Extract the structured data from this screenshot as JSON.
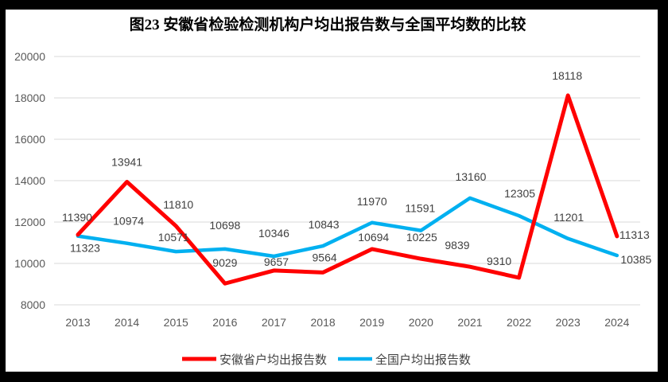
{
  "title": "图23 安徽省检验检测机构户均出报告数与全国平均数的比较",
  "chart_data": {
    "type": "line",
    "categories": [
      "2013",
      "2014",
      "2015",
      "2016",
      "2017",
      "2018",
      "2019",
      "2020",
      "2021",
      "2022",
      "2023",
      "2024"
    ],
    "series": [
      {
        "id": "anhui",
        "name": "安徽省户均出报告数",
        "color": "#FF0000",
        "stroke_width": 5,
        "values": [
          11390,
          13941,
          11810,
          9029,
          9657,
          9564,
          10694,
          10225,
          9839,
          9310,
          18118,
          11313
        ],
        "label_offsets": [
          [
            -1,
            -17
          ],
          [
            0,
            -20
          ],
          [
            3,
            -22
          ],
          [
            0,
            -21
          ],
          [
            3,
            -6
          ],
          [
            2,
            -14
          ],
          [
            2,
            -10
          ],
          [
            1,
            -22
          ],
          [
            -16,
            -22
          ],
          [
            -25,
            -16
          ],
          [
            -1,
            -20
          ],
          [
            22,
            3
          ]
        ]
      },
      {
        "id": "national",
        "name": "全国户均出报告数",
        "color": "#00B0F0",
        "stroke_width": 4.5,
        "values": [
          11323,
          10974,
          10571,
          10698,
          10346,
          10843,
          11970,
          11591,
          13160,
          12305,
          11201,
          10385
        ],
        "label_offsets": [
          [
            9,
            20
          ],
          [
            2,
            -23
          ],
          [
            -3,
            -13
          ],
          [
            0,
            -25
          ],
          [
            0,
            -24
          ],
          [
            1,
            -22
          ],
          [
            0,
            -22
          ],
          [
            -1,
            -23
          ],
          [
            1,
            -22
          ],
          [
            1,
            -23
          ],
          [
            1,
            -22
          ],
          [
            24,
            10
          ]
        ]
      }
    ],
    "ylim": [
      8000,
      20000
    ],
    "yticks": [
      8000,
      10000,
      12000,
      14000,
      16000,
      18000,
      20000
    ],
    "grid": "horizontal-only",
    "legend_position": "bottom"
  }
}
